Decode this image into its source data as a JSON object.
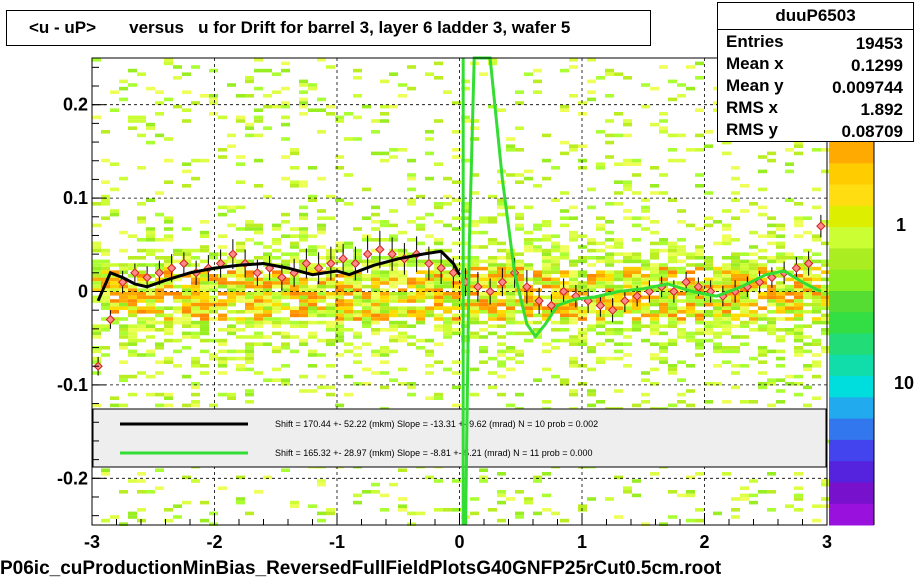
{
  "title": "<u - uP>       versus   u for Drift for barrel 3, layer 6 ladder 3, wafer 5",
  "footer": "P06ic_cuProductionMinBias_ReversedFullFieldPlotsG40GNFP25rCut0.5cm.root",
  "stats": {
    "name": "duuP6503",
    "rows": [
      {
        "key": "Entries",
        "value": "19453"
      },
      {
        "key": "Mean x",
        "value": "0.1299"
      },
      {
        "key": "Mean y",
        "value": "0.009744"
      },
      {
        "key": "RMS x",
        "value": "1.892"
      },
      {
        "key": "RMS y",
        "value": "0.08709"
      }
    ]
  },
  "colorbar_labels": [
    "1",
    "10"
  ],
  "legend": [
    {
      "color": "#000000",
      "text": "Shift =    170.44 +- 52.22 (mkm) Slope =    -13.31 +- 9.62 (mrad)  N = 10 prob = 0.002"
    },
    {
      "color": "#33dd33",
      "text": "Shift =    165.32 +- 28.97 (mkm) Slope =     -8.81 +- 5.21 (mrad)  N = 11 prob = 0.000"
    }
  ],
  "chart_data": {
    "type": "heatmap",
    "title": "<u - uP>       versus   u for Drift for barrel 3, layer 6 ladder 3, wafer 5",
    "xlim": [
      -3,
      3
    ],
    "ylim": [
      -0.25,
      0.25
    ],
    "x_ticks": [
      -3,
      -2,
      -1,
      0,
      1,
      2,
      3
    ],
    "y_ticks": [
      -0.2,
      -0.1,
      0,
      0.1,
      0.2
    ],
    "x_tick_labels": [
      "-3",
      "-2",
      "-1",
      "0",
      "1",
      "2",
      "3"
    ],
    "y_tick_labels": [
      "-0.2",
      "-0.1",
      "0",
      "0.1",
      "0.2"
    ],
    "grid": true,
    "profile_points": {
      "x": [
        -2.95,
        -2.85,
        -2.75,
        -2.65,
        -2.55,
        -2.45,
        -2.35,
        -2.25,
        -2.15,
        -2.05,
        -1.95,
        -1.85,
        -1.75,
        -1.65,
        -1.55,
        -1.45,
        -1.35,
        -1.25,
        -1.15,
        -1.05,
        -0.95,
        -0.85,
        -0.75,
        -0.65,
        -0.55,
        -0.45,
        -0.35,
        -0.25,
        -0.15,
        -0.05,
        0.05,
        0.15,
        0.25,
        0.35,
        0.45,
        0.55,
        0.65,
        0.75,
        0.85,
        0.95,
        1.05,
        1.15,
        1.25,
        1.35,
        1.45,
        1.55,
        1.65,
        1.75,
        1.85,
        1.95,
        2.05,
        2.15,
        2.25,
        2.35,
        2.45,
        2.55,
        2.65,
        2.75,
        2.85,
        2.95
      ],
      "y": [
        -0.08,
        -0.03,
        0.01,
        0.02,
        0.015,
        0.02,
        0.025,
        0.03,
        0.02,
        0.025,
        0.03,
        0.04,
        0.03,
        0.02,
        0.025,
        0.015,
        0.02,
        0.03,
        0.025,
        0.03,
        0.035,
        0.03,
        0.04,
        0.045,
        0.04,
        0.035,
        0.04,
        0.03,
        0.025,
        0.02,
        0.01,
        0.005,
        0.0,
        0.01,
        0.02,
        0.005,
        -0.01,
        -0.015,
        0.0,
        -0.005,
        -0.01,
        -0.015,
        -0.02,
        -0.01,
        -0.005,
        0.0,
        0.005,
        0.0,
        0.01,
        0.005,
        0.0,
        -0.005,
        0.0,
        0.005,
        0.01,
        0.015,
        0.02,
        0.025,
        0.03,
        0.07
      ],
      "err": [
        0.01,
        0.01,
        0.012,
        0.01,
        0.012,
        0.013,
        0.015,
        0.012,
        0.013,
        0.014,
        0.015,
        0.016,
        0.015,
        0.014,
        0.013,
        0.014,
        0.015,
        0.016,
        0.017,
        0.018,
        0.016,
        0.018,
        0.02,
        0.02,
        0.018,
        0.017,
        0.019,
        0.018,
        0.017,
        0.016,
        0.015,
        0.016,
        0.014,
        0.015,
        0.016,
        0.018,
        0.014,
        0.012,
        0.014,
        0.012,
        0.013,
        0.012,
        0.013,
        0.012,
        0.011,
        0.012,
        0.011,
        0.012,
        0.011,
        0.01,
        0.012,
        0.011,
        0.012,
        0.011,
        0.012,
        0.011,
        0.012,
        0.012,
        0.013,
        0.012
      ]
    },
    "fit_black": {
      "x": [
        -2.95,
        -2.85,
        -2.75,
        -2.65,
        -2.55,
        -2.4,
        -2.2,
        -2.0,
        -1.8,
        -1.6,
        -1.4,
        -1.2,
        -1.1,
        -1.0,
        -0.9,
        -0.7,
        -0.5,
        -0.3,
        -0.15,
        -0.05,
        0.0
      ],
      "y": [
        -0.01,
        0.02,
        0.015,
        0.008,
        0.005,
        0.012,
        0.02,
        0.025,
        0.028,
        0.03,
        0.025,
        0.018,
        0.02,
        0.022,
        0.018,
        0.028,
        0.035,
        0.04,
        0.043,
        0.03,
        0.018
      ]
    },
    "fit_green": {
      "x": [
        0.05,
        0.08,
        0.12,
        0.18,
        0.25,
        0.35,
        0.45,
        0.55,
        0.62,
        0.7,
        0.8,
        0.95,
        1.1,
        1.3,
        1.5,
        1.7,
        1.9,
        2.1,
        2.3,
        2.5,
        2.65,
        2.8,
        2.95
      ],
      "y": [
        -0.25,
        0.05,
        0.25,
        0.25,
        0.25,
        0.12,
        0.02,
        -0.035,
        -0.048,
        -0.035,
        -0.015,
        -0.008,
        -0.006,
        0.0,
        0.003,
        0.008,
        0.0,
        -0.005,
        0.005,
        0.018,
        0.022,
        0.01,
        0.0
      ]
    }
  }
}
